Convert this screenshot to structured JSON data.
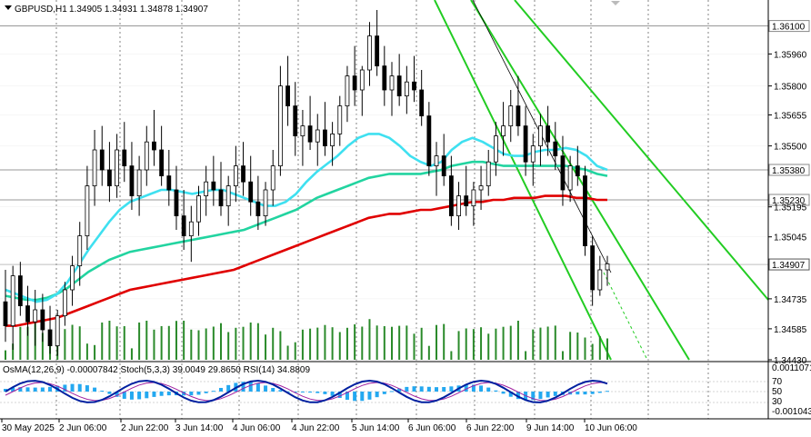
{
  "header": {
    "symbol": "GBPUSD,H1",
    "ohlc": "1.34905 1.34931 1.34878 1.34907"
  },
  "oscillator": {
    "label": "OsMA(12,26,9) -0.00007842  Stoch(5,3,3) 39.0049 29.8650  RSI(14) 34.8809",
    "scale_top": "0.0011071",
    "scale_bottom": "-0.001043",
    "levels": [
      "70",
      "50",
      "30"
    ]
  },
  "colors": {
    "ma_fast": "#3fe0f0",
    "ma_mid": "#22d4a0",
    "ma_slow": "#e00000",
    "channel": "#22cc22",
    "bull_body": "#ffffff",
    "bear_body": "#000000",
    "volume": "#2a8a2a",
    "osma_hist": "#24a8f0",
    "stoch_main": "#0020a0",
    "stoch_signal": "#a020a0"
  },
  "chart_data": {
    "type": "line",
    "price_axis": [
      "1.35960",
      "1.35800",
      "1.35655",
      "1.35500",
      "1.35195",
      "1.35045",
      "1.34735",
      "1.34585",
      "1.34430"
    ],
    "highlighted_levels": [
      "1.36100",
      "1.35380",
      "1.35230"
    ],
    "current_price": "1.34907",
    "time_axis": [
      "30 May 2025",
      "2 Jun 06:00",
      "2 Jun 22:00",
      "3 Jun 14:00",
      "4 Jun 06:00",
      "4 Jun 22:00",
      "5 Jun 14:00",
      "6 Jun 06:00",
      "6 Jun 22:00",
      "9 Jun 14:00",
      "10 Jun 06:00"
    ],
    "ylim": [
      1.3443,
      1.3623
    ],
    "candles": [
      [
        1.3472,
        1.3488,
        1.3452,
        1.346
      ],
      [
        1.346,
        1.349,
        1.3448,
        1.3485
      ],
      [
        1.3485,
        1.3492,
        1.3465,
        1.347
      ],
      [
        1.347,
        1.348,
        1.3455,
        1.3462
      ],
      [
        1.3462,
        1.3478,
        1.345,
        1.3468
      ],
      [
        1.3468,
        1.3476,
        1.3452,
        1.3458
      ],
      [
        1.3458,
        1.347,
        1.3446,
        1.345
      ],
      [
        1.345,
        1.3468,
        1.3445,
        1.3465
      ],
      [
        1.3465,
        1.3482,
        1.346,
        1.3478
      ],
      [
        1.3478,
        1.3495,
        1.347,
        1.349
      ],
      [
        1.349,
        1.3512,
        1.348,
        1.3505
      ],
      [
        1.3505,
        1.354,
        1.3498,
        1.353
      ],
      [
        1.353,
        1.3558,
        1.352,
        1.3548
      ],
      [
        1.3548,
        1.356,
        1.353,
        1.3538
      ],
      [
        1.3538,
        1.3552,
        1.3522,
        1.353
      ],
      [
        1.353,
        1.3556,
        1.3524,
        1.3548
      ],
      [
        1.3548,
        1.3562,
        1.3532,
        1.354
      ],
      [
        1.354,
        1.3552,
        1.3518,
        1.3525
      ],
      [
        1.3525,
        1.3545,
        1.3515,
        1.3538
      ],
      [
        1.3538,
        1.356,
        1.353,
        1.3552
      ],
      [
        1.3552,
        1.3568,
        1.354,
        1.3548
      ],
      [
        1.3548,
        1.356,
        1.353,
        1.3535
      ],
      [
        1.3535,
        1.3548,
        1.352,
        1.3528
      ],
      [
        1.3528,
        1.354,
        1.3508,
        1.3515
      ],
      [
        1.3515,
        1.3528,
        1.3498,
        1.3505
      ],
      [
        1.3505,
        1.352,
        1.3492,
        1.3512
      ],
      [
        1.3512,
        1.353,
        1.3505,
        1.3525
      ],
      [
        1.3525,
        1.354,
        1.3515,
        1.3532
      ],
      [
        1.3532,
        1.3545,
        1.352,
        1.3528
      ],
      [
        1.3528,
        1.3542,
        1.3515,
        1.352
      ],
      [
        1.352,
        1.3535,
        1.351,
        1.353
      ],
      [
        1.353,
        1.355,
        1.3522,
        1.354
      ],
      [
        1.354,
        1.3552,
        1.3525,
        1.3532
      ],
      [
        1.3532,
        1.3545,
        1.3515,
        1.3522
      ],
      [
        1.3522,
        1.3535,
        1.3508,
        1.3515
      ],
      [
        1.3515,
        1.3532,
        1.351,
        1.3528
      ],
      [
        1.3528,
        1.3548,
        1.352,
        1.354
      ],
      [
        1.354,
        1.359,
        1.3535,
        1.358
      ],
      [
        1.358,
        1.3595,
        1.356,
        1.357
      ],
      [
        1.357,
        1.3582,
        1.3545,
        1.3555
      ],
      [
        1.3555,
        1.3568,
        1.354,
        1.356
      ],
      [
        1.356,
        1.3575,
        1.3548,
        1.3552
      ],
      [
        1.3552,
        1.3566,
        1.354,
        1.3558
      ],
      [
        1.3558,
        1.3572,
        1.3545,
        1.355
      ],
      [
        1.355,
        1.3562,
        1.354,
        1.3556
      ],
      [
        1.3556,
        1.3575,
        1.355,
        1.357
      ],
      [
        1.357,
        1.359,
        1.3562,
        1.3585
      ],
      [
        1.3585,
        1.36,
        1.357,
        1.3578
      ],
      [
        1.3578,
        1.359,
        1.3565,
        1.3588
      ],
      [
        1.3588,
        1.3612,
        1.358,
        1.3605
      ],
      [
        1.3605,
        1.3618,
        1.3585,
        1.359
      ],
      [
        1.359,
        1.36,
        1.357,
        1.3578
      ],
      [
        1.3578,
        1.3592,
        1.3565,
        1.3585
      ],
      [
        1.3585,
        1.3596,
        1.357,
        1.3575
      ],
      [
        1.3575,
        1.359,
        1.3566,
        1.3582
      ],
      [
        1.3582,
        1.3595,
        1.3572,
        1.3578
      ],
      [
        1.3578,
        1.3588,
        1.356,
        1.3565
      ],
      [
        1.3565,
        1.3572,
        1.3535,
        1.354
      ],
      [
        1.354,
        1.3552,
        1.3525,
        1.3545
      ],
      [
        1.3545,
        1.3556,
        1.353,
        1.3535
      ],
      [
        1.3535,
        1.3545,
        1.351,
        1.3515
      ],
      [
        1.3515,
        1.3532,
        1.3508,
        1.3525
      ],
      [
        1.3525,
        1.354,
        1.3515,
        1.352
      ],
      [
        1.352,
        1.3532,
        1.351,
        1.3528
      ],
      [
        1.3528,
        1.354,
        1.3518,
        1.353
      ],
      [
        1.353,
        1.3548,
        1.3525,
        1.3542
      ],
      [
        1.3542,
        1.3562,
        1.3535,
        1.3555
      ],
      [
        1.3555,
        1.3572,
        1.3545,
        1.356
      ],
      [
        1.356,
        1.3578,
        1.3552,
        1.357
      ],
      [
        1.357,
        1.3585,
        1.3555,
        1.356
      ],
      [
        1.356,
        1.357,
        1.3535,
        1.3542
      ],
      [
        1.3542,
        1.3556,
        1.353,
        1.355
      ],
      [
        1.355,
        1.3566,
        1.354,
        1.356
      ],
      [
        1.356,
        1.357,
        1.3545,
        1.3552
      ],
      [
        1.3552,
        1.3562,
        1.3538,
        1.3545
      ],
      [
        1.3545,
        1.3555,
        1.352,
        1.3528
      ],
      [
        1.3528,
        1.3545,
        1.3522,
        1.354
      ],
      [
        1.354,
        1.355,
        1.353,
        1.3535
      ],
      [
        1.3535,
        1.354,
        1.3495,
        1.35
      ],
      [
        1.35,
        1.3505,
        1.347,
        1.3478
      ],
      [
        1.3478,
        1.3495,
        1.3475,
        1.3488
      ],
      [
        1.3488,
        1.3495,
        1.348,
        1.3491
      ]
    ],
    "ma_fast": [
      1.3478,
      1.3476,
      1.3474,
      1.3472,
      1.3473,
      1.3476,
      1.3482,
      1.349,
      1.3498,
      1.3505,
      1.3512,
      1.3518,
      1.3522,
      1.3524,
      1.3526,
      1.3528,
      1.3528,
      1.3527,
      1.3526,
      1.3527,
      1.3528,
      1.3528,
      1.3526,
      1.3524,
      1.3522,
      1.352,
      1.352,
      1.3522,
      1.3526,
      1.3532,
      1.3537,
      1.3541,
      1.3545,
      1.355,
      1.3554,
      1.3556,
      1.3556,
      1.3554,
      1.355,
      1.3545,
      1.3542,
      1.354,
      1.3542,
      1.3548,
      1.3552,
      1.3554,
      1.3552,
      1.3549,
      1.3546,
      1.3545,
      1.3545,
      1.3547,
      1.3548,
      1.3548,
      1.3549,
      1.3548,
      1.3545,
      1.354,
      1.3538
    ],
    "ma_mid": [
      1.3475,
      1.3474,
      1.3473,
      1.3473,
      1.3474,
      1.3476,
      1.3479,
      1.3483,
      1.3487,
      1.349,
      1.3493,
      1.3495,
      1.3497,
      1.3498,
      1.3499,
      1.35,
      1.3501,
      1.3502,
      1.3503,
      1.3504,
      1.3505,
      1.3506,
      1.3507,
      1.3508,
      1.351,
      1.3512,
      1.3514,
      1.3516,
      1.3518,
      1.3521,
      1.3524,
      1.3526,
      1.3528,
      1.353,
      1.3532,
      1.3534,
      1.3535,
      1.3536,
      1.3536,
      1.3536,
      1.3536,
      1.3537,
      1.3538,
      1.354,
      1.3541,
      1.3542,
      1.3542,
      1.3541,
      1.354,
      1.354,
      1.354,
      1.354,
      1.354,
      1.354,
      1.354,
      1.3539,
      1.3538,
      1.3536,
      1.3535
    ],
    "ma_slow": [
      1.346,
      1.346,
      1.3461,
      1.3462,
      1.3463,
      1.3464,
      1.3466,
      1.3468,
      1.347,
      1.3472,
      1.3474,
      1.3476,
      1.3478,
      1.3479,
      1.348,
      1.3481,
      1.3482,
      1.3483,
      1.3484,
      1.3485,
      1.3486,
      1.3487,
      1.3488,
      1.349,
      1.3492,
      1.3494,
      1.3496,
      1.3498,
      1.35,
      1.3502,
      1.3504,
      1.3506,
      1.3508,
      1.351,
      1.3512,
      1.3514,
      1.3515,
      1.3516,
      1.3516,
      1.3517,
      1.3518,
      1.3518,
      1.3519,
      1.352,
      1.3521,
      1.3522,
      1.3522,
      1.3523,
      1.3523,
      1.3524,
      1.3524,
      1.3524,
      1.3525,
      1.3525,
      1.3525,
      1.3524,
      1.3524,
      1.3523,
      1.3523
    ]
  }
}
